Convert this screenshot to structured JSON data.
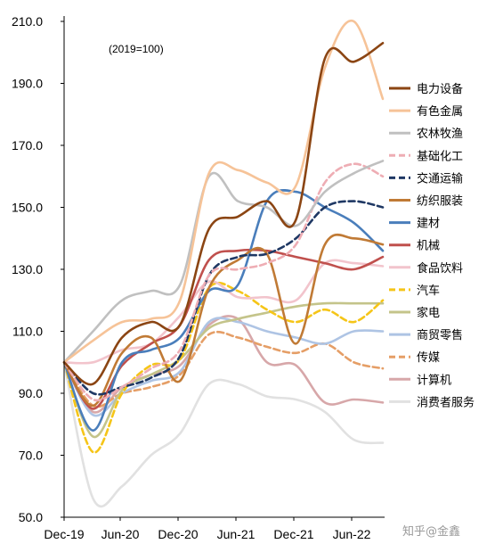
{
  "chart_data": {
    "type": "line",
    "note": "(2019=100)",
    "x_ticks": [
      "Dec-19",
      "Jun-20",
      "Dec-20",
      "Jun-21",
      "Dec-21",
      "Jun-22"
    ],
    "x": [
      0,
      1,
      2,
      3,
      4,
      5,
      6,
      7,
      8,
      9,
      10,
      11
    ],
    "ylim": [
      50,
      210
    ],
    "y_ticks": [
      "50.0",
      "70.0",
      "90.0",
      "110.0",
      "130.0",
      "150.0",
      "170.0",
      "190.0",
      "210.0"
    ],
    "grid": false,
    "legend_position": "right",
    "watermark": "知乎@金鑫",
    "series": [
      {
        "name": "电力设备",
        "color": "#8b4513",
        "dash": "solid",
        "values": [
          100,
          93,
          108,
          113,
          112,
          143,
          147,
          152,
          146,
          198,
          197,
          203
        ]
      },
      {
        "name": "有色金属",
        "color": "#f6c398",
        "dash": "solid",
        "values": [
          100,
          107,
          113,
          114,
          120,
          161,
          162,
          158,
          157,
          195,
          210,
          185
        ]
      },
      {
        "name": "农林牧渔",
        "color": "#c0c0c0",
        "dash": "solid",
        "values": [
          100,
          110,
          120,
          123,
          125,
          160,
          152,
          150,
          144,
          155,
          161,
          165
        ]
      },
      {
        "name": "基础化工",
        "color": "#eeadb4",
        "dash": "dash",
        "values": [
          100,
          88,
          92,
          98,
          104,
          128,
          130,
          132,
          138,
          158,
          164,
          160
        ]
      },
      {
        "name": "交通运输",
        "color": "#1f3864",
        "dash": "dash",
        "values": [
          100,
          90,
          92,
          95,
          102,
          128,
          134,
          135,
          140,
          150,
          152,
          150
        ]
      },
      {
        "name": "纺织服装",
        "color": "#c07a35",
        "dash": "solid",
        "values": [
          100,
          86,
          103,
          108,
          94,
          124,
          133,
          135,
          106,
          138,
          140,
          138
        ]
      },
      {
        "name": "建材",
        "color": "#4a7ebb",
        "dash": "solid",
        "values": [
          100,
          78,
          100,
          104,
          108,
          123,
          125,
          152,
          155,
          150,
          145,
          136
        ]
      },
      {
        "name": "机械",
        "color": "#c0504d",
        "dash": "solid",
        "values": [
          100,
          85,
          99,
          106,
          112,
          133,
          136,
          136,
          134,
          132,
          130,
          134
        ]
      },
      {
        "name": "食品饮料",
        "color": "#f2c4cc",
        "dash": "solid",
        "values": [
          100,
          100,
          104,
          106,
          115,
          126,
          121,
          121,
          120,
          132,
          132,
          131
        ]
      },
      {
        "name": "汽车",
        "color": "#f5c518",
        "dash": "dash",
        "values": [
          100,
          71,
          90,
          99,
          101,
          124,
          123,
          117,
          113,
          117,
          113,
          120
        ]
      },
      {
        "name": "家电",
        "color": "#c4c48a",
        "dash": "solid",
        "values": [
          100,
          76,
          91,
          96,
          101,
          111,
          114,
          116,
          118,
          119,
          119,
          119
        ]
      },
      {
        "name": "商贸零售",
        "color": "#aec4e4",
        "dash": "solid",
        "values": [
          100,
          83,
          90,
          94,
          97,
          113,
          113,
          110,
          108,
          106,
          110,
          110
        ]
      },
      {
        "name": "传媒",
        "color": "#e59e66",
        "dash": "dash",
        "values": [
          100,
          86,
          90,
          92,
          96,
          109,
          108,
          105,
          103,
          106,
          100,
          98
        ]
      },
      {
        "name": "计算机",
        "color": "#d7a7a9",
        "dash": "solid",
        "values": [
          100,
          84,
          92,
          96,
          99,
          112,
          114,
          100,
          99,
          87,
          88,
          87
        ]
      },
      {
        "name": "消费者服务",
        "color": "#e1e1e1",
        "dash": "solid",
        "values": [
          100,
          56,
          60,
          70,
          77,
          93,
          93,
          89,
          88,
          84,
          75,
          74
        ]
      }
    ]
  }
}
